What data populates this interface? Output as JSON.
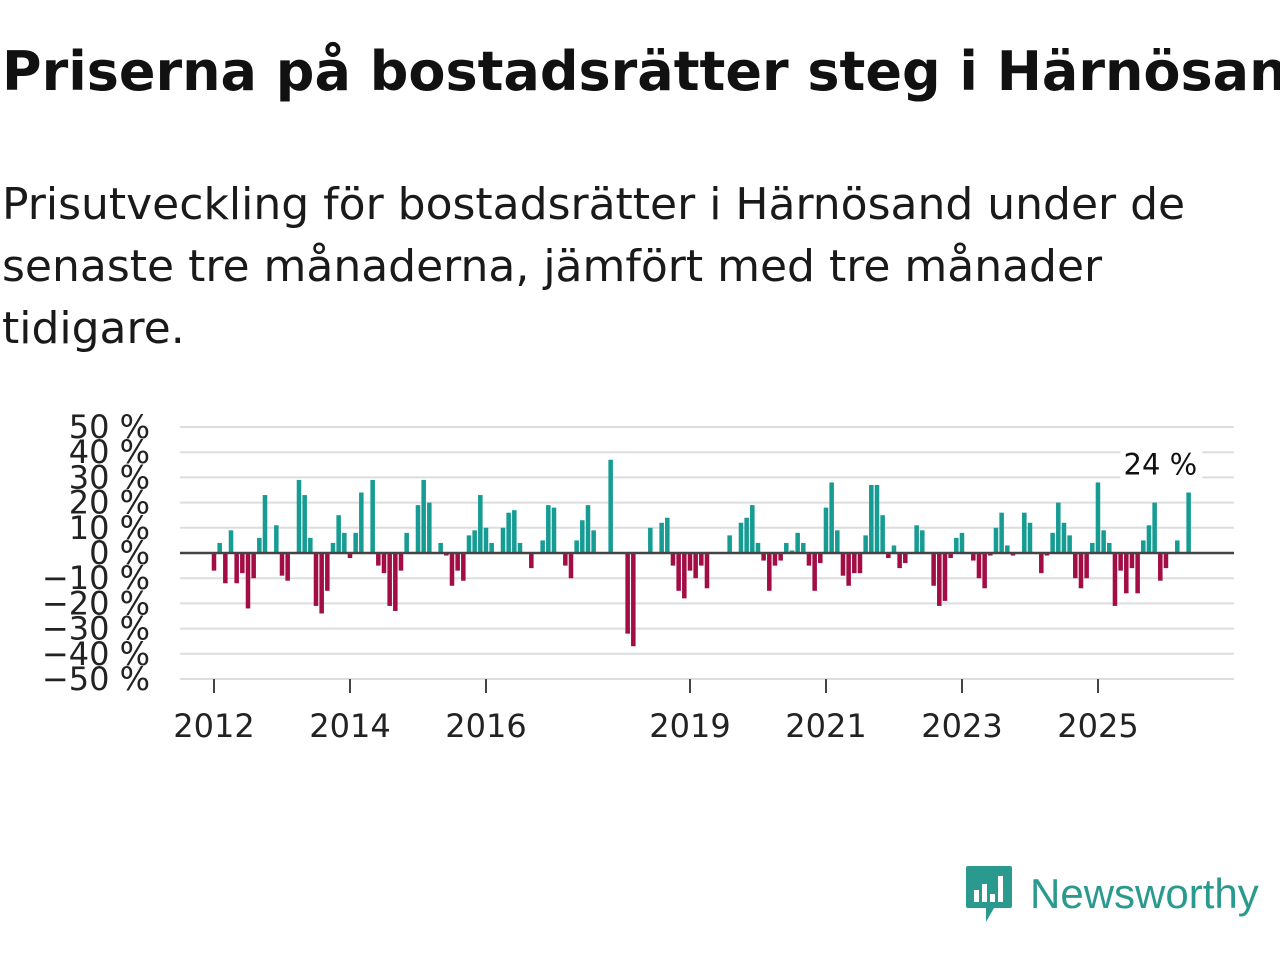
{
  "title": "Priserna på bostadsrätter steg i Härnösand",
  "subtitle": "Prisutveckling för bostadsrätter i Härnösand under de senaste tre månaderna, jämfört med tre månader tidigare.",
  "brand": {
    "name": "Newsworthy"
  },
  "colors": {
    "positive": "#179c94",
    "negative": "#a30d45",
    "grid": "#dddddd",
    "zero": "#444444",
    "text": "#222222"
  },
  "chart_data": {
    "type": "bar",
    "ylim": [
      -50,
      50
    ],
    "x_start": 2011.5,
    "x_end": 2027.0,
    "y_tick_labels": [
      "50 %",
      "40 %",
      "30 %",
      "20 %",
      "10 %",
      "0 %",
      "−10 %",
      "−20 %",
      "−30 %",
      "−40 %",
      "−50 %"
    ],
    "y_tick_values": [
      50,
      40,
      30,
      20,
      10,
      0,
      -10,
      -20,
      -30,
      -40,
      -50
    ],
    "x_tick_labels": [
      "2012",
      "2014",
      "2016",
      "2019",
      "2021",
      "2023",
      "2025"
    ],
    "x_tick_values": [
      2012,
      2014,
      2016,
      2019,
      2021,
      2023,
      2025
    ],
    "annotation": {
      "text": "24 %",
      "x": 2025.917,
      "value": 24
    },
    "series_start": 2012.0,
    "series_step": 0.08333,
    "values": [
      -7,
      4,
      -12,
      9,
      -12,
      -8,
      -22,
      -10,
      6,
      23,
      0,
      11,
      -9,
      -11,
      0,
      29,
      23,
      6,
      -21,
      -24,
      -15,
      4,
      15,
      8,
      -2,
      8,
      24,
      0,
      29,
      -5,
      -8,
      -21,
      -23,
      -7,
      8,
      0,
      19,
      29,
      20,
      0,
      4,
      -1,
      -13,
      -7,
      -11,
      7,
      9,
      23,
      10,
      4,
      0,
      10,
      16,
      17,
      4,
      0,
      -6,
      0,
      5,
      19,
      18,
      0,
      -5,
      -10,
      5,
      13,
      19,
      9,
      0,
      0,
      37,
      0,
      0,
      -32,
      -37,
      0,
      0,
      10,
      0,
      12,
      14,
      -5,
      -15,
      -18,
      -7,
      -10,
      -5,
      -14,
      0,
      0,
      0,
      7,
      0,
      12,
      14,
      19,
      4,
      -3,
      -15,
      -5,
      -3,
      4,
      1,
      8,
      4,
      -5,
      -15,
      -4,
      18,
      28,
      9,
      -9,
      -13,
      -8,
      -8,
      7,
      27,
      27,
      15,
      -2,
      3,
      -6,
      -4,
      0,
      11,
      9,
      0,
      -13,
      -21,
      -19,
      -2,
      6,
      8,
      0,
      -3,
      -10,
      -14,
      -1,
      10,
      16,
      3,
      -1,
      0,
      16,
      12,
      0,
      -8,
      -1,
      8,
      20,
      12,
      7,
      -10,
      -14,
      -10,
      4,
      28,
      9,
      4,
      -21,
      -7,
      -16,
      -6,
      -16,
      5,
      11,
      20,
      -11,
      -6,
      0,
      5,
      0,
      24
    ]
  }
}
